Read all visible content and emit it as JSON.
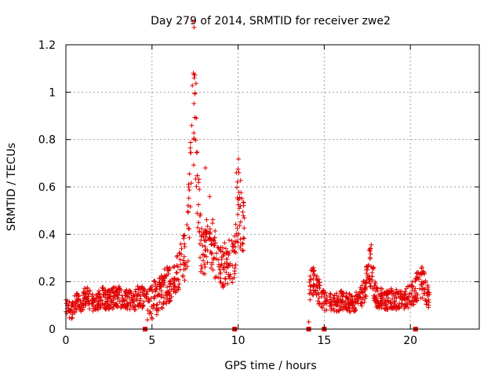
{
  "chart_data": {
    "type": "scatter",
    "title": "Day 279 of 2014, SRMTID for receiver zwe2",
    "xlabel": "GPS time / hours",
    "ylabel": "SRMTID / TECUs",
    "xlim": [
      0,
      24
    ],
    "ylim": [
      0,
      1.2
    ],
    "x_ticks": [
      0,
      5,
      10,
      15,
      20
    ],
    "x_tick_labels": [
      "0",
      "5",
      "10",
      "15",
      "20"
    ],
    "y_ticks": [
      0,
      0.2,
      0.4,
      0.6,
      0.8,
      1.0,
      1.2
    ],
    "y_tick_labels": [
      "0",
      "0.2",
      "0.4",
      "0.6",
      "0.8",
      "1",
      "1.2"
    ],
    "grid": true,
    "marker": "plus",
    "color": "#e00000",
    "data_gap_markers_x": [
      4.6,
      9.8,
      14.1,
      15.0,
      20.3
    ],
    "series": [
      {
        "name": "SRMTID",
        "segments": [
          {
            "x_range": [
              0.0,
              4.6
            ],
            "profile": [
              [
                0.0,
                0.11
              ],
              [
                0.3,
                0.07
              ],
              [
                0.6,
                0.12
              ],
              [
                0.9,
                0.1
              ],
              [
                1.2,
                0.15
              ],
              [
                1.5,
                0.11
              ],
              [
                1.8,
                0.12
              ],
              [
                2.1,
                0.14
              ],
              [
                2.4,
                0.12
              ],
              [
                2.7,
                0.13
              ],
              [
                3.0,
                0.14
              ],
              [
                3.3,
                0.12
              ],
              [
                3.6,
                0.13
              ],
              [
                3.9,
                0.11
              ],
              [
                4.2,
                0.14
              ],
              [
                4.6,
                0.13
              ]
            ],
            "spread": 0.035
          },
          {
            "x_range": [
              4.6,
              10.35
            ],
            "profile": [
              [
                4.6,
                0.11
              ],
              [
                5.0,
                0.12
              ],
              [
                5.4,
                0.15
              ],
              [
                5.8,
                0.18
              ],
              [
                6.2,
                0.21
              ],
              [
                6.6,
                0.26
              ],
              [
                7.0,
                0.33
              ],
              [
                7.2,
                0.55
              ],
              [
                7.35,
                0.95
              ],
              [
                7.45,
                1.05
              ],
              [
                7.6,
                0.7
              ],
              [
                7.8,
                0.38
              ],
              [
                8.0,
                0.33
              ],
              [
                8.3,
                0.45
              ],
              [
                8.6,
                0.32
              ],
              [
                9.0,
                0.26
              ],
              [
                9.4,
                0.28
              ],
              [
                9.8,
                0.3
              ],
              [
                10.0,
                0.55
              ],
              [
                10.2,
                0.45
              ],
              [
                10.35,
                0.4
              ]
            ],
            "spread": 0.08
          },
          {
            "x_range": [
              14.1,
              21.1
            ],
            "profile": [
              [
                14.1,
                0.15
              ],
              [
                14.3,
                0.2
              ],
              [
                14.6,
                0.17
              ],
              [
                15.0,
                0.12
              ],
              [
                15.5,
                0.11
              ],
              [
                16.0,
                0.12
              ],
              [
                16.5,
                0.11
              ],
              [
                17.0,
                0.12
              ],
              [
                17.4,
                0.18
              ],
              [
                17.7,
                0.28
              ],
              [
                18.0,
                0.14
              ],
              [
                18.5,
                0.12
              ],
              [
                19.0,
                0.13
              ],
              [
                19.5,
                0.12
              ],
              [
                20.0,
                0.14
              ],
              [
                20.4,
                0.18
              ],
              [
                20.7,
                0.2
              ],
              [
                21.1,
                0.12
              ]
            ],
            "spread": 0.035
          }
        ],
        "notable_points": [
          {
            "x": 7.4,
            "y": 1.08
          },
          {
            "x": 7.45,
            "y": 1.06
          },
          {
            "x": 8.1,
            "y": 0.68
          },
          {
            "x": 9.9,
            "y": 0.66
          },
          {
            "x": 17.65,
            "y": 0.33
          },
          {
            "x": 14.1,
            "y": 0.03
          }
        ]
      }
    ]
  }
}
